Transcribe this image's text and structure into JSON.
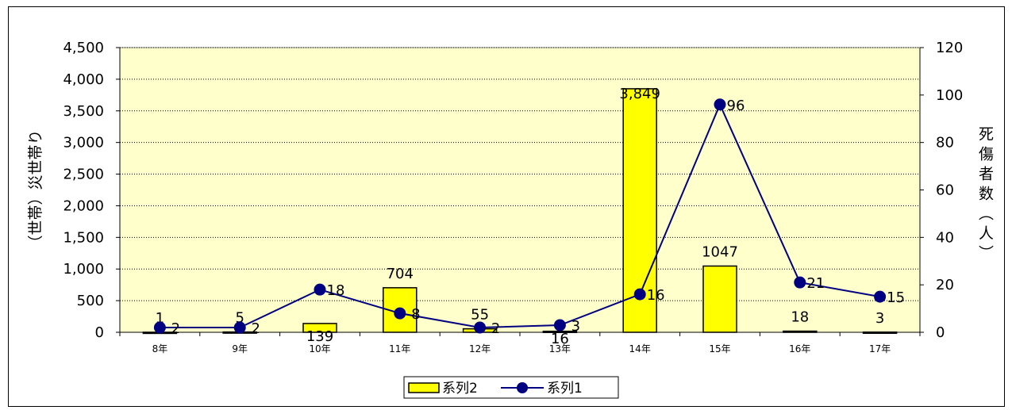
{
  "chart_data": {
    "type": "bar",
    "categories": [
      "8年",
      "9年",
      "10年",
      "11年",
      "12年",
      "13年",
      "14年",
      "15年",
      "16年",
      "17年"
    ],
    "series": [
      {
        "name": "系列2",
        "type": "bar",
        "axis": "left",
        "values": [
          1,
          5,
          139,
          704,
          55,
          16,
          3849,
          1047,
          18,
          3
        ],
        "labels": [
          "1",
          "5",
          "139",
          "704",
          "55",
          "16",
          "3,849",
          "1047",
          "18",
          "3"
        ],
        "color": "#ffff00"
      },
      {
        "name": "系列1",
        "type": "line",
        "axis": "right",
        "values": [
          2,
          2,
          18,
          8,
          2,
          3,
          16,
          96,
          21,
          15
        ],
        "labels": [
          "2",
          "2",
          "18",
          "8",
          "2",
          "3",
          "16",
          "96",
          "21",
          "15"
        ],
        "color": "#000080"
      }
    ],
    "ylabel": "（世帯）災世帯り",
    "y2label": "死傷者数（人）",
    "ylim": [
      0,
      4500
    ],
    "y2lim": [
      0,
      120
    ],
    "yticks": [
      0,
      500,
      1000,
      1500,
      2000,
      2500,
      3000,
      3500,
      4000,
      4500
    ],
    "ytick_labels": [
      "0",
      "500",
      "1,000",
      "1,500",
      "2,000",
      "2,500",
      "3,000",
      "3,500",
      "4,000",
      "4,500"
    ],
    "y2ticks": [
      0,
      20,
      40,
      60,
      80,
      100,
      120
    ],
    "y2tick_labels": [
      "0",
      "20",
      "40",
      "60",
      "80",
      "100",
      "120"
    ],
    "plot_background": "#ffffcc",
    "grid": true,
    "legend": {
      "position": "bottom",
      "entries": [
        "系列2",
        "系列1"
      ]
    }
  }
}
